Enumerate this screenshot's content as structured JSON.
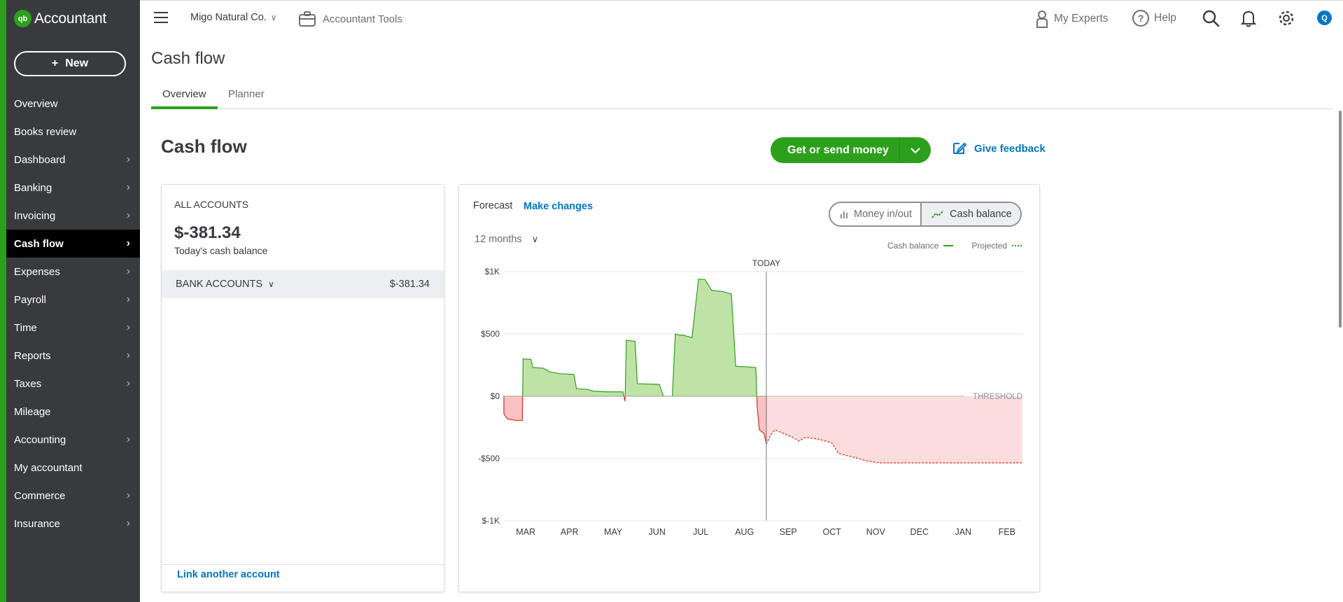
{
  "sidebar": {
    "brand": "Accountant",
    "new_label": "New",
    "items": [
      {
        "label": "Overview",
        "chevron": false
      },
      {
        "label": "Books review",
        "chevron": false
      },
      {
        "label": "Dashboard",
        "chevron": true
      },
      {
        "label": "Banking",
        "chevron": true
      },
      {
        "label": "Invoicing",
        "chevron": true
      },
      {
        "label": "Cash flow",
        "chevron": true,
        "active": true
      },
      {
        "label": "Expenses",
        "chevron": true
      },
      {
        "label": "Payroll",
        "chevron": true
      },
      {
        "label": "Time",
        "chevron": true
      },
      {
        "label": "Reports",
        "chevron": true
      },
      {
        "label": "Taxes",
        "chevron": true
      },
      {
        "label": "Mileage",
        "chevron": false
      },
      {
        "label": "Accounting",
        "chevron": true
      },
      {
        "label": "My accountant",
        "chevron": false
      },
      {
        "label": "Commerce",
        "chevron": true
      },
      {
        "label": "Insurance",
        "chevron": true
      }
    ]
  },
  "topbar": {
    "company": "Migo Natural Co.",
    "tools": "Accountant Tools",
    "experts": "My Experts",
    "help": "Help",
    "avatar": "Q"
  },
  "page": {
    "title": "Cash flow",
    "tabs": [
      "Overview",
      "Planner"
    ],
    "section_title": "Cash flow",
    "get_money": "Get or send money",
    "feedback": "Give feedback"
  },
  "accounts": {
    "heading": "ALL ACCOUNTS",
    "balance": "$-381.34",
    "sub": "Today's cash balance",
    "bank_label": "BANK ACCOUNTS",
    "bank_value": "$-381.34",
    "link": "Link another account"
  },
  "forecast": {
    "label": "Forecast",
    "make_changes": "Make changes",
    "toggle": [
      "Money in/out",
      "Cash balance"
    ],
    "period": "12 months",
    "legend": [
      "Cash balance",
      "Projected"
    ]
  },
  "colors": {
    "brand_green": "#2ca01c",
    "link_blue": "#0077c5",
    "positive_fill": "#bfe3a6",
    "negative_fill": "#f9c3c3",
    "projected_fill": "#fcdcdc"
  },
  "chart_data": {
    "type": "area",
    "today_label": "TODAY",
    "threshold_label": "THRESHOLD",
    "yticks": [
      "$1K",
      "$500",
      "$0",
      "-$500",
      "$-1K"
    ],
    "ylim": [
      -1000,
      1000
    ],
    "categories": [
      "MAR",
      "APR",
      "MAY",
      "JUN",
      "JUL",
      "AUG",
      "SEP",
      "OCT",
      "NOV",
      "DEC",
      "JAN",
      "FEB"
    ],
    "actual": [
      [
        0.0,
        -140
      ],
      [
        0.05,
        -170
      ],
      [
        0.1,
        -185
      ],
      [
        0.3,
        -195
      ],
      [
        0.42,
        -195
      ],
      [
        0.44,
        300
      ],
      [
        0.62,
        295
      ],
      [
        0.66,
        230
      ],
      [
        0.9,
        225
      ],
      [
        1.05,
        195
      ],
      [
        1.3,
        180
      ],
      [
        1.6,
        175
      ],
      [
        1.66,
        60
      ],
      [
        1.9,
        55
      ],
      [
        2.05,
        40
      ],
      [
        2.35,
        35
      ],
      [
        2.72,
        35
      ],
      [
        2.77,
        -40
      ],
      [
        2.8,
        450
      ],
      [
        3.0,
        440
      ],
      [
        3.05,
        100
      ],
      [
        3.55,
        95
      ],
      [
        3.65,
        0
      ],
      [
        3.85,
        0
      ],
      [
        3.92,
        500
      ],
      [
        4.0,
        490
      ],
      [
        4.1,
        490
      ],
      [
        4.3,
        470
      ],
      [
        4.45,
        940
      ],
      [
        4.6,
        935
      ],
      [
        4.75,
        850
      ],
      [
        5.0,
        840
      ],
      [
        5.2,
        820
      ],
      [
        5.3,
        240
      ],
      [
        5.6,
        235
      ],
      [
        5.76,
        230
      ],
      [
        5.79,
        -80
      ],
      [
        5.84,
        -270
      ],
      [
        5.95,
        -300
      ],
      [
        6.0,
        -385
      ]
    ],
    "projected": [
      [
        6.0,
        -385
      ],
      [
        6.1,
        -310
      ],
      [
        6.2,
        -270
      ],
      [
        6.4,
        -300
      ],
      [
        6.6,
        -330
      ],
      [
        6.75,
        -360
      ],
      [
        6.9,
        -330
      ],
      [
        7.2,
        -345
      ],
      [
        7.5,
        -375
      ],
      [
        7.65,
        -460
      ],
      [
        8.0,
        -490
      ],
      [
        8.3,
        -520
      ],
      [
        8.6,
        -535
      ],
      [
        9.0,
        -535
      ],
      [
        10.0,
        -535
      ],
      [
        11.0,
        -535
      ],
      [
        11.85,
        -535
      ]
    ]
  }
}
